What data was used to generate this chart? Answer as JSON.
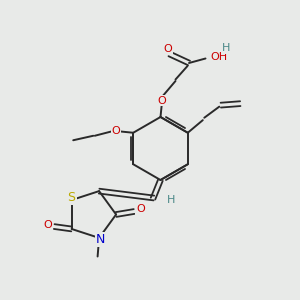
{
  "bg_color": "#e8eae8",
  "bond_color": "#2a2a2a",
  "atom_colors": {
    "O": "#cc0000",
    "S": "#bbaa00",
    "N": "#0000cc",
    "H": "#4a8888",
    "C": "#2a2a2a"
  },
  "figsize": [
    3.0,
    3.0
  ],
  "dpi": 100
}
